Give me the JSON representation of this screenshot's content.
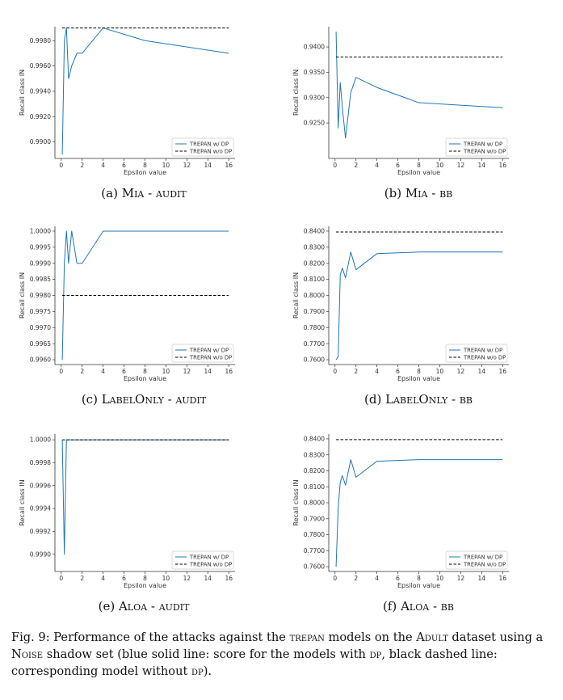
{
  "chart_data": [
    {
      "type": "line",
      "panel_label": "(a)",
      "method": "Mia",
      "setting": "audit",
      "xlabel": "Epsilon value",
      "ylabel": "Recall class IN",
      "xlim": [
        -0.6,
        16.6
      ],
      "ylim": [
        0.9887,
        0.9991
      ],
      "xticks": [
        0,
        2,
        4,
        6,
        8,
        10,
        12,
        14,
        16
      ],
      "yticks": [
        0.99,
        0.992,
        0.994,
        0.996,
        0.998
      ],
      "ytick_labels": [
        "0.9900",
        "0.9920",
        "0.9940",
        "0.9960",
        "0.9980"
      ],
      "legend": "lower right",
      "series": [
        {
          "name": "TREPAN w/ DP",
          "style": "solid",
          "color": "#1f77b4",
          "x": [
            0.1,
            0.3,
            0.5,
            0.7,
            1.0,
            1.5,
            2.0,
            4.0,
            8.0,
            16.0
          ],
          "y": [
            0.989,
            0.998,
            0.999,
            0.995,
            0.996,
            0.997,
            0.997,
            0.999,
            0.998,
            0.997
          ]
        },
        {
          "name": "TREPAN w/o DP",
          "style": "dashed",
          "color": "#000000",
          "x": [
            0.1,
            16.0
          ],
          "y": [
            0.999,
            0.999
          ]
        }
      ]
    },
    {
      "type": "line",
      "panel_label": "(b)",
      "method": "Mia",
      "setting": "bb",
      "xlabel": "Epsilon value",
      "ylabel": "Recall class IN",
      "xlim": [
        -0.6,
        16.6
      ],
      "ylim": [
        0.918,
        0.944
      ],
      "xticks": [
        0,
        2,
        4,
        6,
        8,
        10,
        12,
        14,
        16
      ],
      "yticks": [
        0.925,
        0.93,
        0.935,
        0.94
      ],
      "ytick_labels": [
        "0.9250",
        "0.9300",
        "0.9350",
        "0.9400"
      ],
      "legend": "lower right",
      "series": [
        {
          "name": "TREPAN w/ DP",
          "style": "solid",
          "color": "#1f77b4",
          "x": [
            0.1,
            0.3,
            0.5,
            0.7,
            1.0,
            1.5,
            2.0,
            4.0,
            8.0,
            16.0
          ],
          "y": [
            0.943,
            0.924,
            0.933,
            0.928,
            0.922,
            0.931,
            0.934,
            0.932,
            0.929,
            0.928
          ]
        },
        {
          "name": "TREPAN w/o DP",
          "style": "dashed",
          "color": "#000000",
          "x": [
            0.1,
            16.0
          ],
          "y": [
            0.938,
            0.938
          ]
        }
      ]
    },
    {
      "type": "line",
      "panel_label": "(c)",
      "method": "LabelOnly",
      "setting": "audit",
      "xlabel": "Epsilon value",
      "ylabel": "Recall class IN",
      "xlim": [
        -0.6,
        16.6
      ],
      "ylim": [
        0.99585,
        1.00015
      ],
      "xticks": [
        0,
        2,
        4,
        6,
        8,
        10,
        12,
        14,
        16
      ],
      "yticks": [
        0.996,
        0.9965,
        0.997,
        0.9975,
        0.998,
        0.9985,
        0.999,
        0.9995,
        1.0
      ],
      "ytick_labels": [
        "0.9960",
        "0.9965",
        "0.9970",
        "0.9975",
        "0.9980",
        "0.9985",
        "0.9990",
        "0.9995",
        "1.0000"
      ],
      "legend": "lower right",
      "series": [
        {
          "name": "TREPAN w/ DP",
          "style": "solid",
          "color": "#1f77b4",
          "x": [
            0.1,
            0.3,
            0.5,
            0.7,
            1.0,
            1.5,
            2.0,
            4.0,
            8.0,
            16.0
          ],
          "y": [
            0.996,
            0.999,
            1.0,
            0.999,
            1.0,
            0.999,
            0.999,
            1.0,
            1.0,
            1.0
          ]
        },
        {
          "name": "TREPAN w/o DP",
          "style": "dashed",
          "color": "#000000",
          "x": [
            0.1,
            16.0
          ],
          "y": [
            0.998,
            0.998
          ]
        }
      ]
    },
    {
      "type": "line",
      "panel_label": "(d)",
      "method": "LabelOnly",
      "setting": "bb",
      "xlabel": "Epsilon value",
      "ylabel": "Recall class IN",
      "xlim": [
        -0.6,
        16.6
      ],
      "ylim": [
        0.757,
        0.843
      ],
      "xticks": [
        0,
        2,
        4,
        6,
        8,
        10,
        12,
        14,
        16
      ],
      "yticks": [
        0.76,
        0.77,
        0.78,
        0.79,
        0.8,
        0.81,
        0.82,
        0.83,
        0.84
      ],
      "ytick_labels": [
        "0.7600",
        "0.7700",
        "0.7800",
        "0.7900",
        "0.8000",
        "0.8100",
        "0.8200",
        "0.8300",
        "0.8400"
      ],
      "legend": "lower right",
      "series": [
        {
          "name": "TREPAN w/ DP",
          "style": "solid",
          "color": "#1f77b4",
          "x": [
            0.1,
            0.3,
            0.5,
            0.7,
            1.0,
            1.5,
            2.0,
            4.0,
            8.0,
            16.0
          ],
          "y": [
            0.76,
            0.762,
            0.813,
            0.817,
            0.811,
            0.827,
            0.816,
            0.826,
            0.827,
            0.827
          ]
        },
        {
          "name": "TREPAN w/o DP",
          "style": "dashed",
          "color": "#000000",
          "x": [
            0.1,
            16.0
          ],
          "y": [
            0.8395,
            0.8395
          ]
        }
      ]
    },
    {
      "type": "line",
      "panel_label": "(e)",
      "method": "Aloa",
      "setting": "audit",
      "xlabel": "Epsilon value",
      "ylabel": "Recall class IN",
      "xlim": [
        -0.6,
        16.6
      ],
      "ylim": [
        0.99885,
        1.00005
      ],
      "xticks": [
        0,
        2,
        4,
        6,
        8,
        10,
        12,
        14,
        16
      ],
      "yticks": [
        0.999,
        0.9992,
        0.9994,
        0.9996,
        0.9998,
        1.0
      ],
      "ytick_labels": [
        "0.9990",
        "0.9992",
        "0.9994",
        "0.9996",
        "0.9998",
        "1.0000"
      ],
      "legend": "lower right",
      "series": [
        {
          "name": "TREPAN w/ DP",
          "style": "solid",
          "color": "#1f77b4",
          "x": [
            0.1,
            0.3,
            0.5,
            0.7,
            1.0,
            1.5,
            2.0,
            4.0,
            8.0,
            16.0
          ],
          "y": [
            1.0,
            0.999,
            1.0,
            1.0,
            1.0,
            1.0,
            1.0,
            1.0,
            1.0,
            1.0
          ]
        },
        {
          "name": "TREPAN w/o DP",
          "style": "dashed",
          "color": "#000000",
          "x": [
            0.1,
            16.0
          ],
          "y": [
            1.0,
            1.0
          ]
        }
      ]
    },
    {
      "type": "line",
      "panel_label": "(f)",
      "method": "Aloa",
      "setting": "bb",
      "xlabel": "Epsilon value",
      "ylabel": "Recall class IN",
      "xlim": [
        -0.6,
        16.6
      ],
      "ylim": [
        0.757,
        0.843
      ],
      "xticks": [
        0,
        2,
        4,
        6,
        8,
        10,
        12,
        14,
        16
      ],
      "yticks": [
        0.76,
        0.77,
        0.78,
        0.79,
        0.8,
        0.81,
        0.82,
        0.83,
        0.84
      ],
      "ytick_labels": [
        "0.7600",
        "0.7700",
        "0.7800",
        "0.7900",
        "0.8000",
        "0.8100",
        "0.8200",
        "0.8300",
        "0.8400"
      ],
      "legend": "lower right",
      "series": [
        {
          "name": "TREPAN w/ DP",
          "style": "solid",
          "color": "#1f77b4",
          "x": [
            0.1,
            0.3,
            0.5,
            0.7,
            1.0,
            1.5,
            2.0,
            4.0,
            8.0,
            16.0
          ],
          "y": [
            0.76,
            0.797,
            0.813,
            0.817,
            0.811,
            0.827,
            0.816,
            0.826,
            0.827,
            0.827
          ]
        },
        {
          "name": "TREPAN w/o DP",
          "style": "dashed",
          "color": "#000000",
          "x": [
            0.1,
            16.0
          ],
          "y": [
            0.8395,
            0.8395
          ]
        }
      ]
    }
  ],
  "caption": {
    "label": "Fig. 9:",
    "t1": " Performance of the attacks against the ",
    "sc1": "trepan",
    "t2": " models on the ",
    "sc2": "Adult",
    "t3": " dataset using a ",
    "sc3": "Noise",
    "t4": " shadow set (blue solid line: score for the models with ",
    "sc4": "dp",
    "t5": ", black dashed line: corresponding model without ",
    "sc5": "dp",
    "t6": ")."
  }
}
